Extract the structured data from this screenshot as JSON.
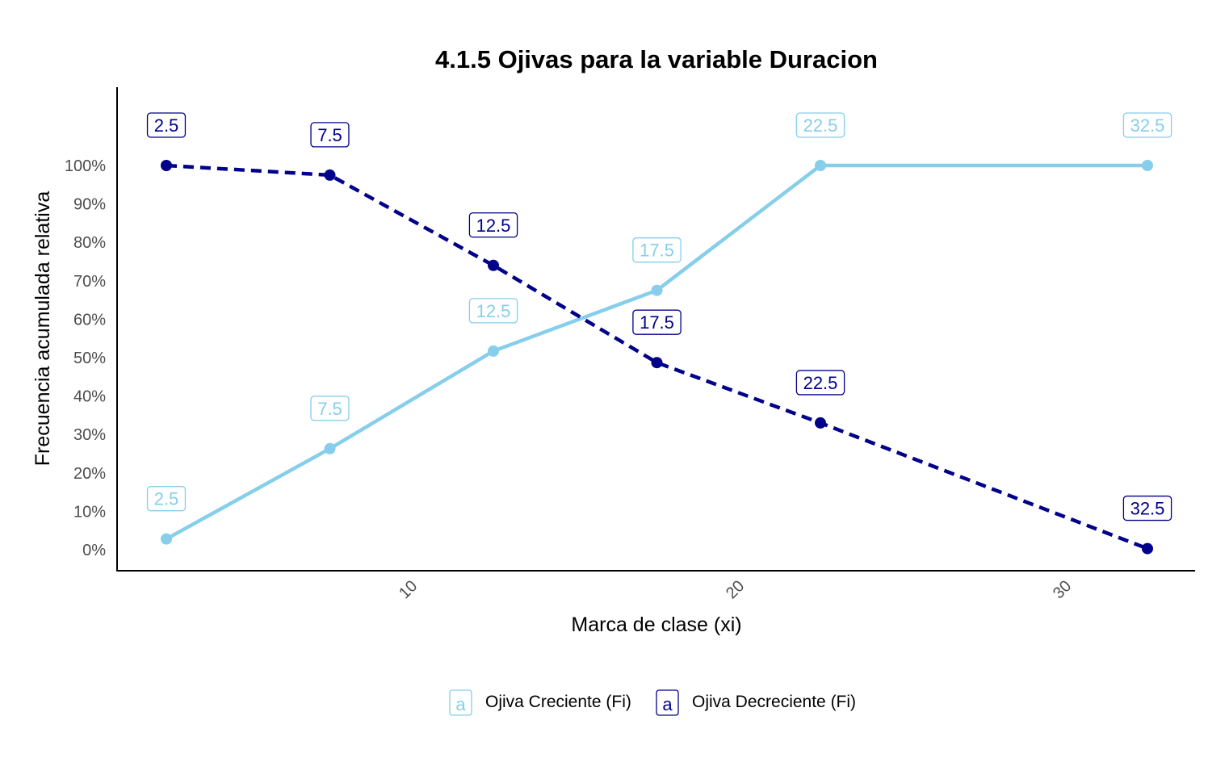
{
  "chart_data": {
    "type": "line",
    "title": "4.1.5 Ojivas para la variable Duracion",
    "xlabel": "Marca de clase (xi)",
    "ylabel": "Frecuencia acumulada relativa",
    "xlim": [
      1,
      34
    ],
    "ylim": [
      -0.05,
      1.2
    ],
    "x_ticks": [
      10,
      20,
      30
    ],
    "y_ticks": [
      0,
      0.1,
      0.2,
      0.3,
      0.4,
      0.5,
      0.6,
      0.7,
      0.8,
      0.9,
      1.0
    ],
    "y_tick_labels": [
      "0%",
      "10%",
      "20%",
      "30%",
      "40%",
      "50%",
      "60%",
      "70%",
      "80%",
      "90%",
      "100%"
    ],
    "grid": false,
    "legend_position": "bottom",
    "series": [
      {
        "name": "Ojiva Creciente (Fi)",
        "color": "#87CEEB",
        "line_style": "solid",
        "label_offset": "above",
        "x": [
          2.5,
          7.5,
          12.5,
          17.5,
          22.5,
          32.5
        ],
        "y": [
          0.028,
          0.263,
          0.517,
          0.675,
          1.0,
          1.0
        ],
        "labels": [
          "2.5",
          "7.5",
          "12.5",
          "17.5",
          "22.5",
          "32.5"
        ]
      },
      {
        "name": "Ojiva Decreciente (Fi)",
        "color": "#00008B",
        "line_style": "dashed",
        "label_offset": "above",
        "x": [
          2.5,
          7.5,
          12.5,
          17.5,
          22.5,
          32.5
        ],
        "y": [
          1.0,
          0.975,
          0.74,
          0.487,
          0.33,
          0.003
        ],
        "labels": [
          "2.5",
          "7.5",
          "12.5",
          "17.5",
          "22.5",
          "32.5"
        ]
      }
    ],
    "legend_key_glyph": "a"
  }
}
